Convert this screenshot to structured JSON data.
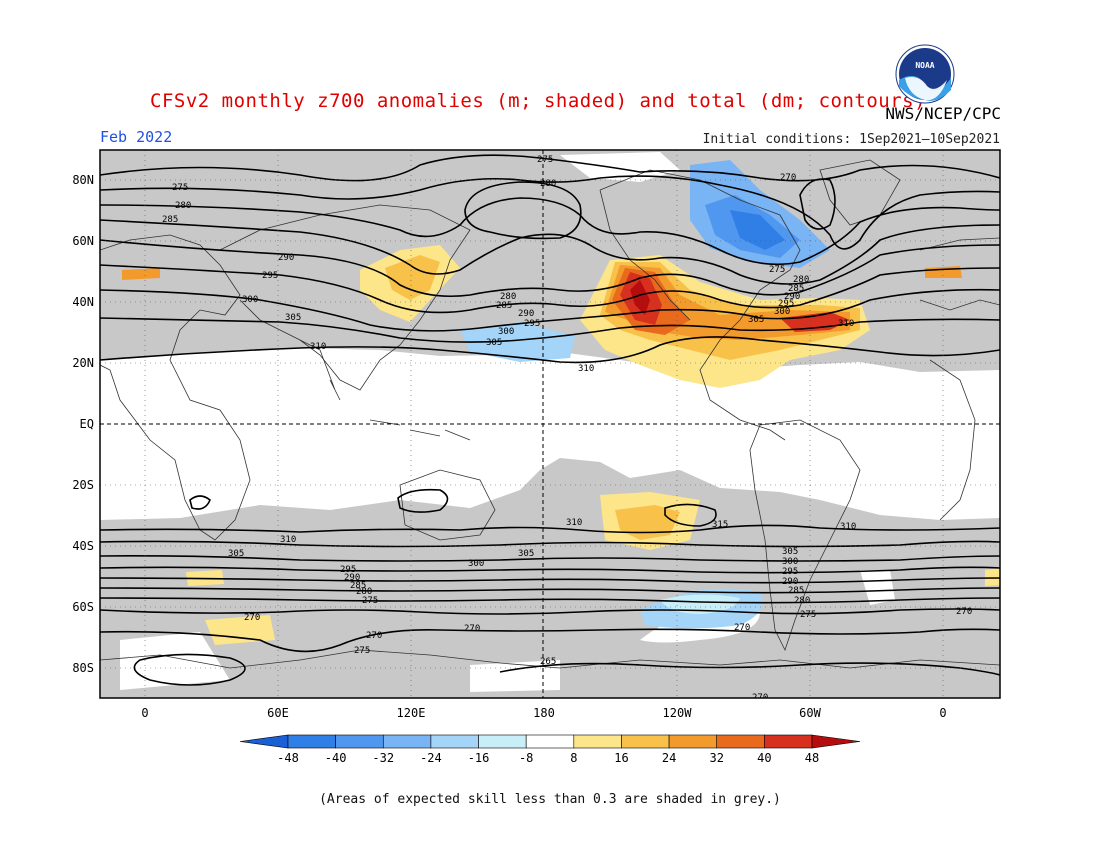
{
  "header": {
    "title": "CFSv2 monthly z700 anomalies (m; shaded) and total (dm; contours)",
    "period": "Feb 2022",
    "initial_conditions": "Initial conditions: 1Sep2021–10Sep2021",
    "agency": "NWS/NCEP/CPC",
    "logo_text": "NOAA"
  },
  "axes": {
    "lat_labels": [
      "80N",
      "60N",
      "40N",
      "20N",
      "EQ",
      "20S",
      "40S",
      "60S",
      "80S"
    ],
    "lon_labels": [
      "0",
      "60E",
      "120E",
      "180",
      "120W",
      "60W",
      "0"
    ]
  },
  "colorbar": {
    "ticks": [
      "-48",
      "-40",
      "-32",
      "-24",
      "-16",
      "-8",
      "8",
      "16",
      "24",
      "32",
      "40",
      "48"
    ],
    "colors": [
      "#1a5fd6",
      "#2f7fe6",
      "#4f97ef",
      "#79b4f5",
      "#a4d4f7",
      "#c8eef8",
      "#ffffff",
      "#fde68a",
      "#f8c14a",
      "#f39a2c",
      "#ea6a1d",
      "#d7301f",
      "#b50d0d"
    ]
  },
  "contour_labels": [
    {
      "text": "275"
    },
    {
      "text": "280"
    },
    {
      "text": "285"
    },
    {
      "text": "290"
    },
    {
      "text": "295"
    },
    {
      "text": "300"
    },
    {
      "text": "305"
    },
    {
      "text": "310"
    },
    {
      "text": "270"
    },
    {
      "text": "315"
    },
    {
      "text": "265"
    }
  ],
  "footnote": "(Areas of expected skill less than 0.3 are shaded in grey.)"
}
